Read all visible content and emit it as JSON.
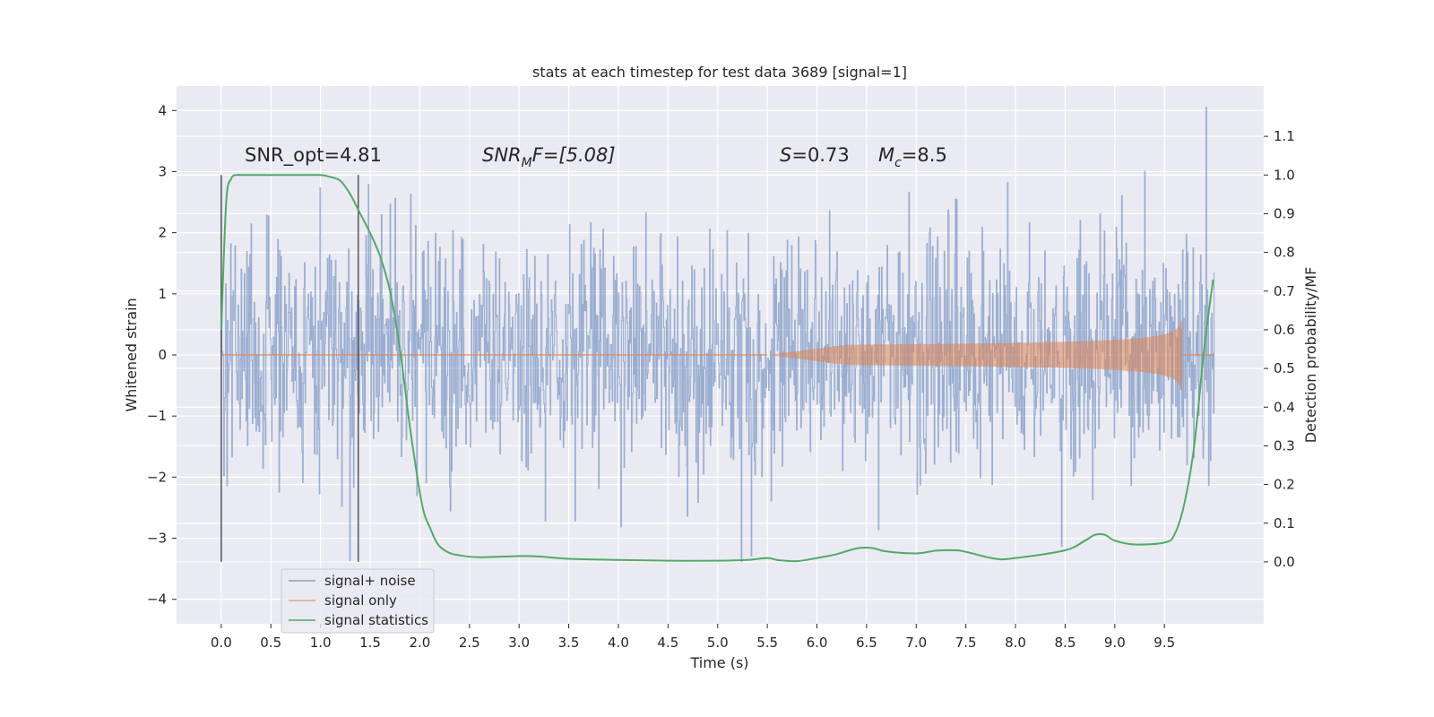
{
  "chart_data": {
    "type": "line",
    "title": "stats at each timestep for test data 3689 [signal=1]",
    "xlabel": "Time (s)",
    "ylabel": "Whitened strain",
    "y2label": "Detection probability/MF",
    "xlim": [
      -0.45,
      10.5
    ],
    "ylim": [
      -4.4,
      4.4
    ],
    "y2lim": [
      -0.16,
      1.23
    ],
    "x_ticks": [
      "0.0",
      "0.5",
      "1.0",
      "1.5",
      "2.0",
      "2.5",
      "3.0",
      "3.5",
      "4.0",
      "4.5",
      "5.0",
      "5.5",
      "6.0",
      "6.5",
      "7.0",
      "7.5",
      "8.0",
      "8.5",
      "9.0",
      "9.5"
    ],
    "x_tick_values": [
      0,
      0.5,
      1,
      1.5,
      2,
      2.5,
      3,
      3.5,
      4,
      4.5,
      5,
      5.5,
      6,
      6.5,
      7,
      7.5,
      8,
      8.5,
      9,
      9.5
    ],
    "y_ticks": [
      "4",
      "3",
      "2",
      "1",
      "0",
      "−1",
      "−2",
      "−3",
      "−4"
    ],
    "y_tick_values": [
      4,
      3,
      2,
      1,
      0,
      -1,
      -2,
      -3,
      -4
    ],
    "y2_ticks": [
      "1.1",
      "1.0",
      "0.9",
      "0.8",
      "0.7",
      "0.6",
      "0.5",
      "0.4",
      "0.3",
      "0.2",
      "0.1",
      "0.0"
    ],
    "y2_tick_values": [
      1.1,
      1.0,
      0.9,
      0.8,
      0.7,
      0.6,
      0.5,
      0.4,
      0.3,
      0.2,
      0.1,
      0.0
    ],
    "grid": true,
    "legend_position": "bottom-left",
    "series": [
      {
        "name": "signal+ noise",
        "color": "#4c72b0",
        "kind": "noise",
        "duration": 10.0,
        "sigma": 1.0,
        "peak": 4.05,
        "peak_t": 9.92
      },
      {
        "name": "signal only",
        "color": "#dd8452",
        "kind": "chirp",
        "start": 5.5,
        "end": 9.68,
        "peak_amp": 0.6
      },
      {
        "name": "signal statistics",
        "color": "#55a868",
        "kind": "probability",
        "t": [
          0.0,
          0.05,
          0.1,
          0.15,
          0.2,
          0.3,
          0.5,
          0.8,
          1.0,
          1.1,
          1.2,
          1.3,
          1.4,
          1.5,
          1.6,
          1.7,
          1.8,
          1.9,
          2.0,
          2.05,
          2.1,
          2.15,
          2.2,
          2.3,
          2.4,
          2.6,
          3.0,
          3.2,
          3.5,
          4.0,
          4.5,
          5.0,
          5.3,
          5.5,
          5.6,
          5.8,
          6.0,
          6.2,
          6.4,
          6.55,
          6.7,
          7.0,
          7.2,
          7.4,
          7.5,
          7.8,
          8.0,
          8.5,
          8.7,
          8.8,
          8.9,
          9.0,
          9.2,
          9.5,
          9.6,
          9.7,
          9.8,
          9.9,
          9.99
        ],
        "y": [
          0.6,
          0.93,
          0.99,
          1.0,
          1.0,
          1.0,
          1.0,
          1.0,
          1.0,
          0.995,
          0.985,
          0.95,
          0.9,
          0.85,
          0.79,
          0.7,
          0.55,
          0.35,
          0.18,
          0.12,
          0.09,
          0.06,
          0.04,
          0.023,
          0.017,
          0.012,
          0.015,
          0.014,
          0.008,
          0.005,
          0.003,
          0.003,
          0.005,
          0.01,
          0.005,
          0.002,
          0.01,
          0.02,
          0.035,
          0.036,
          0.027,
          0.022,
          0.029,
          0.03,
          0.026,
          0.008,
          0.01,
          0.03,
          0.055,
          0.07,
          0.07,
          0.055,
          0.045,
          0.05,
          0.07,
          0.15,
          0.3,
          0.55,
          0.73
        ]
      }
    ],
    "vlines": [
      0.0,
      1.38
    ],
    "annotations": {
      "snr_opt": "SNR_opt=4.81",
      "snr_mf_prefix": "SNR",
      "snr_mf_sub": "M",
      "snr_mf_suffix": "F=[5.08]",
      "s_var": "S",
      "s_val": "=0.73",
      "mc_var": "M",
      "mc_sub": "c",
      "mc_val": "=8.5"
    },
    "colors": {
      "plot_bg": "#eaeaf2",
      "grid": "#ffffff",
      "vline": "#555555"
    }
  }
}
